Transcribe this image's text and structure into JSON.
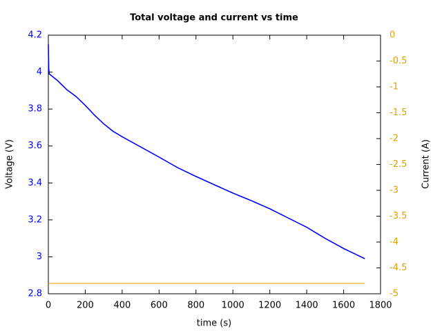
{
  "chart_data": {
    "type": "line",
    "title": "Total voltage and current vs time",
    "x_label": "time (s)",
    "y_label": "Voltage (V)",
    "y2_label": "Current (A)",
    "x": [
      0,
      2,
      5,
      50,
      100,
      150,
      200,
      250,
      300,
      350,
      400,
      500,
      600,
      700,
      800,
      900,
      1000,
      1100,
      1200,
      1300,
      1400,
      1500,
      1600,
      1700,
      1715
    ],
    "series": [
      {
        "color": "#0000ff",
        "values": [
          4.15,
          4.02,
          3.99,
          3.954,
          3.905,
          3.868,
          3.82,
          3.767,
          3.72,
          3.68,
          3.65,
          3.595,
          3.54,
          3.483,
          3.435,
          3.39,
          3.345,
          3.304,
          3.26,
          3.21,
          3.16,
          3.1,
          3.045,
          2.997,
          2.99
        ]
      },
      {
        "color": "#e0a000",
        "axis": "y2",
        "values": [
          -4.8,
          -4.8,
          -4.8,
          -4.8,
          -4.8,
          -4.8,
          -4.8,
          -4.8,
          -4.8,
          -4.8,
          -4.8,
          -4.8,
          -4.8,
          -4.8,
          -4.8,
          -4.8,
          -4.8,
          -4.8,
          -4.8,
          -4.8,
          -4.8,
          -4.8,
          -4.8,
          -4.8,
          -4.8
        ]
      }
    ],
    "xlim": [
      0,
      1800
    ],
    "xticks": [
      0,
      200,
      400,
      600,
      800,
      1000,
      1200,
      1400,
      1600,
      1800
    ],
    "ylim": [
      2.8,
      4.2
    ],
    "yticks": [
      2.8,
      3,
      3.2,
      3.4,
      3.6,
      3.8,
      4,
      4.2
    ],
    "y2lim": [
      -5,
      0
    ],
    "y2ticks": [
      -5,
      -4.5,
      -4,
      -3.5,
      -3,
      -2.5,
      -2,
      -1.5,
      -1,
      -0.5,
      0
    ],
    "y_color": "#0000ff",
    "y2_color": "#e0a000"
  }
}
